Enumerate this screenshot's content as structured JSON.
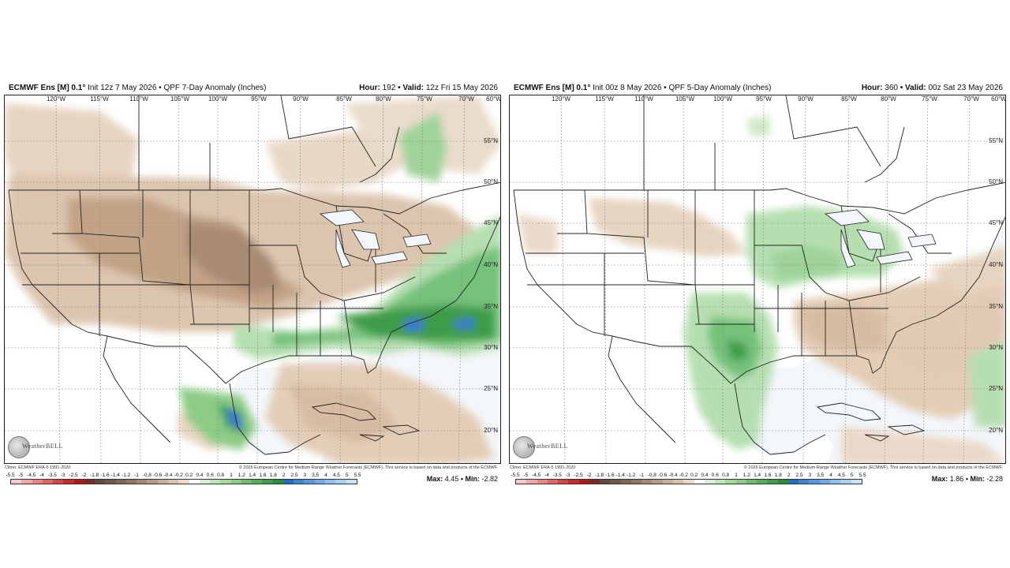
{
  "colors": {
    "ocean": "#f3f6fa",
    "land_white": "#ffffff",
    "dry_light": "#e6d4c0",
    "dry_mid": "#d2b296",
    "dry_dark": "#b08e72",
    "dry_darker": "#8c735e",
    "wet_light": "#b6dfb1",
    "wet_mid": "#74c27a",
    "wet_dark": "#3d9c4a",
    "wet_blue": "#3a76d6",
    "border": "#222222"
  },
  "panels": [
    {
      "header_model": "ECMWF Ens [M] 0.1°",
      "header_init": "Init 12z 7 May 2026 • QPF 7-Day Anomaly (Inches)",
      "header_hour_label": "Hour:",
      "header_hour": "192",
      "header_valid_label": "• Valid:",
      "header_valid": "12z Fri 15 May 2026",
      "footer_left": "Climo: ECMWF ERA-5 1991-2020",
      "footer_right": "© 2026 European Centre for Medium-Range Weather Forecasts (ECMWF). This service is based on data and products of the ECMWF.",
      "max_label": "Max:",
      "max_value": "4.45",
      "min_label": "• Min:",
      "min_value": "-2.82",
      "logo_text": "WeatherBELL",
      "field": {
        "dry_areas": [
          "Intermountain West",
          "Northern/Central Plains",
          "Midwest",
          "Ohio Valley",
          "New England",
          "Florida",
          "Gulf of Mexico",
          "Caribbean"
        ],
        "wet_areas": [
          "Southern Plains",
          "Gulf Coast",
          "Southeast",
          "Mid-Atlantic",
          "Western Atlantic",
          "Eastern Canada",
          "Western Mexico"
        ],
        "max_region": "Western Mexico / Western Atlantic"
      }
    },
    {
      "header_model": "ECMWF Ens [M] 0.1°",
      "header_init": "Init 00z 8 May 2026 • QPF 5-Day Anomaly (Inches)",
      "header_hour_label": "Hour:",
      "header_hour": "360",
      "header_valid_label": "• Valid:",
      "header_valid": "00z Sat 23 May 2026",
      "footer_left": "Climo: ECMWF ERA-5 1991-2020",
      "footer_right": "© 2026 European Centre for Medium-Range Weather Forecasts (ECMWF). This service is based on data and products of the ECMWF.",
      "max_label": "Max:",
      "max_value": "1.86",
      "min_label": "• Min:",
      "min_value": "-2.28",
      "logo_text": "WeatherBELL",
      "field": {
        "dry_areas": [
          "Southeast",
          "Gulf Coast",
          "Florida",
          "Mid-Atlantic",
          "Western Atlantic",
          "Northern Plains",
          "Caribbean"
        ],
        "wet_areas": [
          "Texas",
          "Southern Plains",
          "Upper Midwest",
          "Great Lakes",
          "Eastern Mexico"
        ],
        "max_region": "Texas"
      }
    }
  ],
  "lon_labels": [
    "120°W",
    "115°W",
    "110°W",
    "105°W",
    "100°W",
    "95°W",
    "90°W",
    "85°W",
    "80°W",
    "75°W",
    "70°W",
    "60°W"
  ],
  "lat_labels": [
    "55°N",
    "50°N",
    "45°N",
    "40°N",
    "35°N",
    "30°N",
    "25°N",
    "20°N"
  ],
  "colorbar": {
    "ticks": [
      "-5.5",
      "-5",
      "-4.5",
      "-4",
      "-3.5",
      "-3",
      "-2.5",
      "-2",
      "-1.8",
      "-1.6",
      "-1.4",
      "-1.2",
      "-1",
      "-0.8",
      "-0.6",
      "-0.4",
      "-0.2",
      "0.2",
      "0.4",
      "0.6",
      "0.8",
      "1",
      "1.2",
      "1.4",
      "1.6",
      "1.8",
      "2",
      "2.5",
      "3",
      "3.5",
      "4",
      "4.5",
      "5",
      "5.5"
    ],
    "colors": [
      "#f7c9c9",
      "#f2a7a7",
      "#ec8686",
      "#e36464",
      "#d94545",
      "#cc2a2a",
      "#b31818",
      "#7a2a22",
      "#5e4a3e",
      "#6e5849",
      "#7f6754",
      "#917762",
      "#a48873",
      "#b69a84",
      "#c8ad96",
      "#d9c2ae",
      "#ead8c8",
      "#ffffff",
      "#d8f0d2",
      "#bfe5b8",
      "#a5d99e",
      "#8bcc85",
      "#70bd6e",
      "#57ae5a",
      "#3f9e48",
      "#2b8c3b",
      "#246dc2",
      "#3a84d6",
      "#5598e0",
      "#71acea",
      "#8cc0f0",
      "#a7d2f5",
      "#c2e3f9"
    ]
  }
}
